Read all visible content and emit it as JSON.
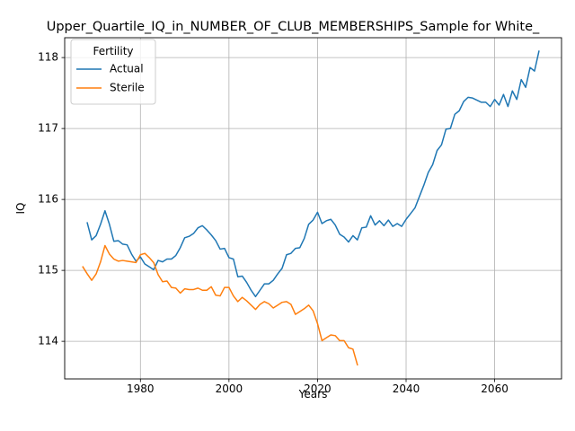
{
  "chart_data": {
    "type": "line",
    "title": "Upper_Quartile_IQ_in_NUMBER_OF_CLUB_MEMBERSHIPS_Sample for White_",
    "xlabel": "Years",
    "ylabel": "IQ",
    "xlim": [
      1962.9,
      2075.1
    ],
    "ylim": [
      113.47,
      118.28
    ],
    "xticks": [
      1980,
      2000,
      2020,
      2040,
      2060
    ],
    "yticks": [
      114,
      115,
      116,
      117,
      118
    ],
    "grid": true,
    "legend": {
      "title": "Fertility",
      "placement": "top-left"
    },
    "series": [
      {
        "name": "Actual",
        "color": "#1f77b4",
        "x": [
          1968,
          1969,
          1970,
          1971,
          1972,
          1973,
          1974,
          1975,
          1976,
          1977,
          1978,
          1979,
          1980,
          1981,
          1982,
          1983,
          1984,
          1985,
          1986,
          1987,
          1988,
          1989,
          1990,
          1991,
          1992,
          1993,
          1994,
          1995,
          1996,
          1997,
          1998,
          1999,
          2000,
          2001,
          2002,
          2003,
          2004,
          2005,
          2006,
          2007,
          2008,
          2009,
          2010,
          2011,
          2012,
          2013,
          2014,
          2015,
          2016,
          2017,
          2018,
          2019,
          2020,
          2021,
          2022,
          2023,
          2024,
          2025,
          2026,
          2027,
          2028,
          2029,
          2030,
          2031,
          2032,
          2033,
          2034,
          2035,
          2036,
          2037,
          2038,
          2039,
          2040,
          2041,
          2042,
          2043,
          2044,
          2045,
          2046,
          2047,
          2048,
          2049,
          2050,
          2051,
          2052,
          2053,
          2054,
          2055,
          2056,
          2057,
          2058,
          2059,
          2060,
          2061,
          2062,
          2063,
          2064,
          2065,
          2066,
          2067,
          2068,
          2069,
          2070
        ],
        "y": [
          115.67,
          115.43,
          115.49,
          115.65,
          115.84,
          115.65,
          115.41,
          115.42,
          115.37,
          115.36,
          115.23,
          115.13,
          115.19,
          115.09,
          115.05,
          115.01,
          115.14,
          115.12,
          115.16,
          115.16,
          115.21,
          115.32,
          115.46,
          115.48,
          115.52,
          115.6,
          115.63,
          115.57,
          115.5,
          115.42,
          115.3,
          115.31,
          115.18,
          115.16,
          114.91,
          114.92,
          114.83,
          114.72,
          114.63,
          114.72,
          114.81,
          114.81,
          114.86,
          114.95,
          115.03,
          115.22,
          115.24,
          115.31,
          115.32,
          115.45,
          115.65,
          115.71,
          115.82,
          115.66,
          115.7,
          115.72,
          115.64,
          115.51,
          115.47,
          115.4,
          115.49,
          115.43,
          115.6,
          115.61,
          115.77,
          115.64,
          115.7,
          115.63,
          115.71,
          115.62,
          115.66,
          115.62,
          115.72,
          115.8,
          115.88,
          116.04,
          116.2,
          116.38,
          116.49,
          116.69,
          116.77,
          116.99,
          117.0,
          117.2,
          117.25,
          117.38,
          117.44,
          117.43,
          117.4,
          117.37,
          117.37,
          117.31,
          117.41,
          117.33,
          117.48,
          117.31,
          117.53,
          117.41,
          117.69,
          117.58,
          117.86,
          117.81,
          118.09
        ]
      },
      {
        "name": "Sterile",
        "color": "#ff7f0e",
        "x": [
          1967,
          1968,
          1969,
          1970,
          1971,
          1972,
          1973,
          1974,
          1975,
          1976,
          1977,
          1978,
          1979,
          1980,
          1981,
          1982,
          1983,
          1984,
          1985,
          1986,
          1987,
          1988,
          1989,
          1990,
          1991,
          1992,
          1993,
          1994,
          1995,
          1996,
          1997,
          1998,
          1999,
          2000,
          2001,
          2002,
          2003,
          2004,
          2005,
          2006,
          2007,
          2008,
          2009,
          2010,
          2011,
          2012,
          2013,
          2014,
          2015,
          2016,
          2017,
          2018,
          2019,
          2020,
          2021,
          2022,
          2023,
          2024,
          2025,
          2026,
          2027,
          2028,
          2029
        ],
        "y": [
          115.05,
          114.95,
          114.86,
          114.95,
          115.12,
          115.35,
          115.23,
          115.16,
          115.13,
          115.14,
          115.13,
          115.12,
          115.11,
          115.22,
          115.24,
          115.18,
          115.11,
          114.94,
          114.84,
          114.85,
          114.76,
          114.75,
          114.68,
          114.74,
          114.73,
          114.73,
          114.75,
          114.72,
          114.72,
          114.77,
          114.65,
          114.64,
          114.76,
          114.76,
          114.64,
          114.56,
          114.62,
          114.57,
          114.51,
          114.45,
          114.52,
          114.56,
          114.53,
          114.47,
          114.51,
          114.55,
          114.56,
          114.52,
          114.38,
          114.42,
          114.46,
          114.51,
          114.43,
          114.25,
          114.01,
          114.05,
          114.09,
          114.08,
          114.01,
          114.01,
          113.91,
          113.89,
          113.67
        ]
      }
    ]
  }
}
